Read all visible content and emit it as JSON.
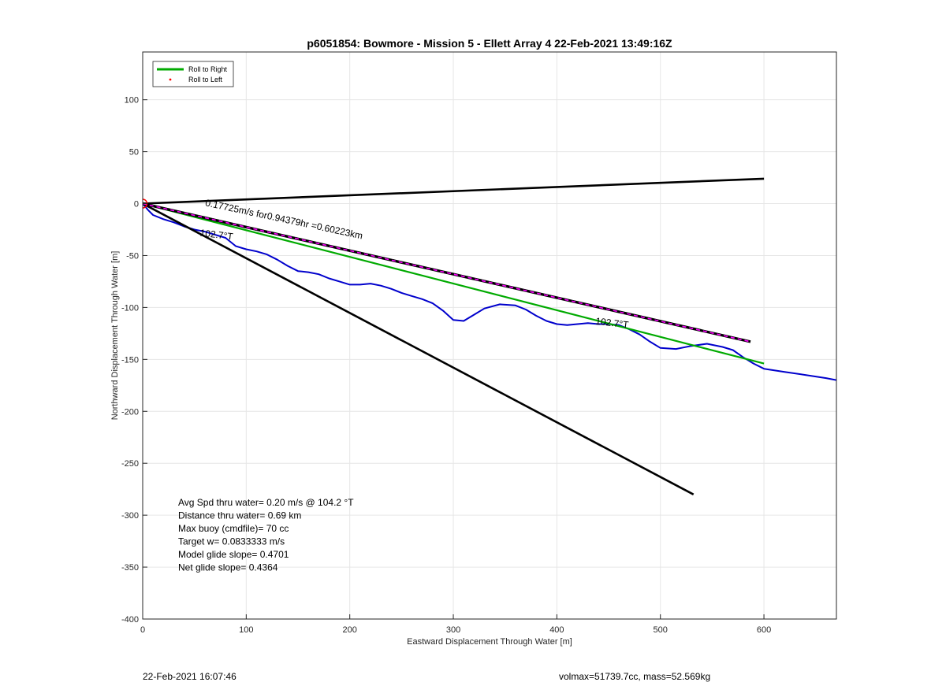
{
  "chart_data": {
    "type": "line",
    "title": "p6051854: Bowmore - Mission 5 - Ellett Array 4 22-Feb-2021 13:49:16Z",
    "xlabel": "Eastward Displacement Through Water [m]",
    "ylabel": "Northward Displacement Through Water [m]",
    "xlim": [
      0,
      670
    ],
    "ylim": [
      -400,
      146
    ],
    "xticks": [
      0,
      100,
      200,
      300,
      400,
      500,
      600
    ],
    "yticks": [
      100,
      50,
      0,
      -50,
      -100,
      -150,
      -200,
      -250,
      -300,
      -350,
      -400
    ],
    "xtick_labels": [
      "0",
      "100",
      "200",
      "300",
      "400",
      "500",
      "600"
    ],
    "ytick_labels": [
      "100",
      "50",
      "0",
      "-50",
      "-100",
      "-150",
      "-200",
      "-250",
      "-300",
      "-350",
      "-400"
    ],
    "grid": true,
    "legend": {
      "placement": "top-left",
      "entries": [
        {
          "label": "Roll to Right",
          "color": "#00aa00",
          "style": "line"
        },
        {
          "label": "Roll to Left",
          "color": "#ff0000",
          "style": "point"
        }
      ]
    },
    "series": [
      {
        "kind": "track",
        "color": "#0000cc",
        "x": [
          0,
          5,
          10,
          20,
          30,
          40,
          50,
          60,
          70,
          80,
          90,
          100,
          110,
          120,
          130,
          140,
          150,
          160,
          170,
          180,
          190,
          200,
          210,
          220,
          230,
          240,
          250,
          260,
          270,
          280,
          290,
          300,
          310,
          320,
          330,
          345,
          360,
          370,
          380,
          390,
          400,
          410,
          420,
          430,
          440,
          450,
          460,
          470,
          480,
          490,
          500,
          515,
          530,
          545,
          560,
          570,
          580,
          590,
          600,
          620,
          640,
          660,
          670
        ],
        "y": [
          0,
          -6,
          -11,
          -15,
          -18,
          -22,
          -25,
          -27,
          -30,
          -33,
          -41,
          -44,
          -46,
          -49,
          -54,
          -60,
          -65,
          -66,
          -68,
          -72,
          -75,
          -78,
          -78,
          -77,
          -79,
          -82,
          -86,
          -89,
          -92,
          -96,
          -103,
          -112,
          -113,
          -107,
          -101,
          -97,
          -98,
          -102,
          -108,
          -113,
          -116,
          -117,
          -116,
          -115,
          -116,
          -116,
          -117,
          -121,
          -126,
          -133,
          -139,
          -140,
          -137,
          -135,
          -138,
          -141,
          -148,
          -154,
          -159,
          -162,
          -165,
          -168,
          -170
        ]
      },
      {
        "kind": "fit-track",
        "color": "#00aa00",
        "x": [
          0,
          600
        ],
        "y": [
          0,
          -154
        ]
      },
      {
        "kind": "heading-line",
        "color": "#000000",
        "x": [
          0,
          600
        ],
        "y": [
          0,
          24
        ]
      },
      {
        "kind": "heading-line",
        "color": "#000000",
        "x": [
          0,
          532
        ],
        "y": [
          0,
          -280
        ]
      },
      {
        "kind": "avg-velocity",
        "color": "#000000",
        "dash_color": "#ff00ff",
        "x": [
          0,
          587
        ],
        "y": [
          0,
          -133
        ]
      }
    ],
    "markers": [
      {
        "kind": "start",
        "color": "#ff0000",
        "x": 0,
        "y": 0
      }
    ],
    "annotations": [
      {
        "text": "0.17725m/s for0.94379hr =0.60223km",
        "x": 60,
        "y": -2,
        "angle": 12
      },
      {
        "text": "102.7°T",
        "x": 55,
        "y": -31,
        "angle": 7
      },
      {
        "text": "102.7°T",
        "x": 437,
        "y": -116,
        "angle": 7
      }
    ],
    "stats": [
      "Avg Spd thru water=  0.20 m/s @ 104.2 °T",
      "Distance thru water=  0.69 km",
      "Max buoy (cmdfile)= 70 cc",
      "Target w= 0.0833333 m/s",
      "Model glide slope= 0.4701",
      "Net glide slope= 0.4364"
    ]
  },
  "footer": {
    "left": "22-Feb-2021 16:07:46",
    "right": "volmax=51739.7cc, mass=52.569kg"
  }
}
